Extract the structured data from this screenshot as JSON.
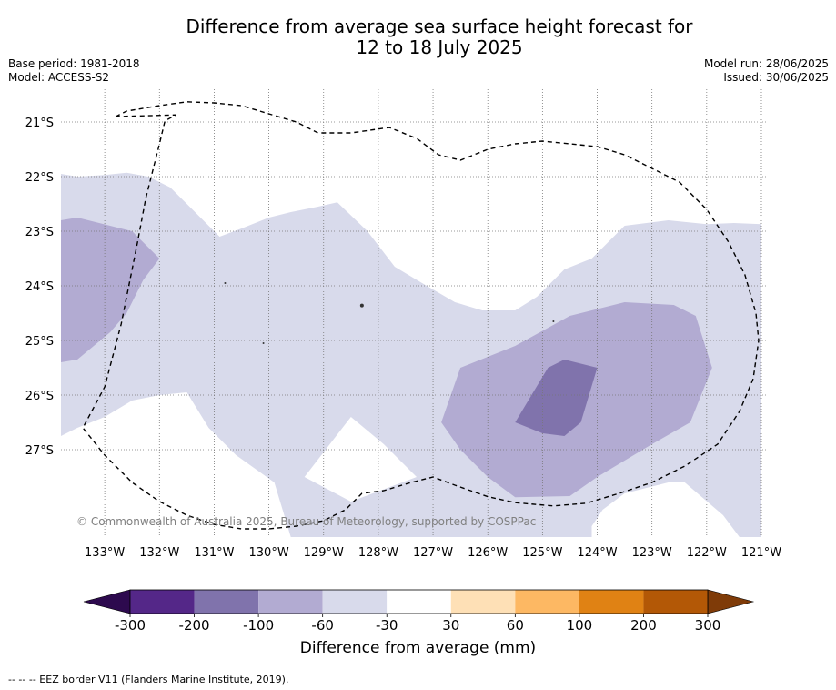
{
  "title_line1": "Difference from average sea surface height forecast for",
  "title_line2": "12 to 18 July 2025",
  "base_period": "Base period: 1981-2018",
  "model": "Model: ACCESS-S2",
  "model_run": "Model run: 28/06/2025",
  "issued": "Issued: 30/06/2025",
  "copyright": "© Commonwealth of Australia 2025, Bureau of Meteorology, supported by COSPPac",
  "eez_note": "-- -- -- EEZ border V11 (Flanders Marine Institute, 2019).",
  "colorbar_title": "Difference from average (mm)",
  "map_extent": {
    "lon_min": -133.8,
    "lon_max": -120.9,
    "lat_min": -28.6,
    "lat_max": -20.4
  },
  "lon_ticks": [
    {
      "value": -133,
      "label": "133°W"
    },
    {
      "value": -132,
      "label": "132°W"
    },
    {
      "value": -131,
      "label": "131°W"
    },
    {
      "value": -130,
      "label": "130°W"
    },
    {
      "value": -129,
      "label": "129°W"
    },
    {
      "value": -128,
      "label": "128°W"
    },
    {
      "value": -127,
      "label": "127°W"
    },
    {
      "value": -126,
      "label": "126°W"
    },
    {
      "value": -125,
      "label": "125°W"
    },
    {
      "value": -124,
      "label": "124°W"
    },
    {
      "value": -123,
      "label": "123°W"
    },
    {
      "value": -122,
      "label": "122°W"
    },
    {
      "value": -121,
      "label": "121°W"
    }
  ],
  "lat_ticks": [
    {
      "value": -21,
      "label": "21°S"
    },
    {
      "value": -22,
      "label": "22°S"
    },
    {
      "value": -23,
      "label": "23°S"
    },
    {
      "value": -24,
      "label": "24°S"
    },
    {
      "value": -25,
      "label": "25°S"
    },
    {
      "value": -26,
      "label": "26°S"
    },
    {
      "value": -27,
      "label": "27°S"
    }
  ],
  "colorbar": {
    "under_color": "#2d0a4e",
    "over_color": "#7f3b08",
    "colors": [
      "#542788",
      "#8073ac",
      "#b2abd2",
      "#d8daeb",
      "#ffffff",
      "#fee0b6",
      "#fdb863",
      "#e08214",
      "#b35806"
    ],
    "labels": [
      "-300",
      "-200",
      "-100",
      "-60",
      "-30",
      "30",
      "60",
      "100",
      "200",
      "300"
    ]
  },
  "contours": [
    {
      "range": "-60 to -30",
      "color": "#d8daeb",
      "polygon": [
        [
          -133.8,
          -21.95
        ],
        [
          -133.5,
          -22.0
        ],
        [
          -133.0,
          -21.97
        ],
        [
          -132.6,
          -21.93
        ],
        [
          -132.2,
          -22.0
        ],
        [
          -131.8,
          -22.2
        ],
        [
          -131.5,
          -22.5
        ],
        [
          -131.2,
          -22.8
        ],
        [
          -130.9,
          -23.1
        ],
        [
          -130.5,
          -22.95
        ],
        [
          -130.0,
          -22.75
        ],
        [
          -129.6,
          -22.65
        ],
        [
          -129.1,
          -22.55
        ],
        [
          -128.75,
          -22.47
        ],
        [
          -128.2,
          -23.0
        ],
        [
          -127.7,
          -23.65
        ],
        [
          -127.2,
          -23.95
        ],
        [
          -126.6,
          -24.3
        ],
        [
          -126.1,
          -24.45
        ],
        [
          -125.5,
          -24.45
        ],
        [
          -125.1,
          -24.2
        ],
        [
          -124.6,
          -23.7
        ],
        [
          -124.1,
          -23.5
        ],
        [
          -123.5,
          -22.9
        ],
        [
          -122.7,
          -22.8
        ],
        [
          -122.0,
          -22.87
        ],
        [
          -121.5,
          -22.85
        ],
        [
          -121.0,
          -22.87
        ],
        [
          -121.0,
          -28.6
        ],
        [
          -121.4,
          -28.6
        ],
        [
          -121.7,
          -28.2
        ],
        [
          -122.4,
          -27.6
        ],
        [
          -122.7,
          -27.6
        ],
        [
          -123.5,
          -27.8
        ],
        [
          -123.9,
          -28.1
        ],
        [
          -124.1,
          -28.4
        ],
        [
          -124.1,
          -28.6
        ],
        [
          -129.6,
          -28.6
        ],
        [
          -129.9,
          -27.6
        ],
        [
          -130.6,
          -27.1
        ],
        [
          -131.1,
          -26.6
        ],
        [
          -131.5,
          -25.95
        ],
        [
          -132.0,
          -26.0
        ],
        [
          -132.5,
          -26.1
        ],
        [
          -133.0,
          -26.4
        ],
        [
          -133.5,
          -26.6
        ],
        [
          -133.8,
          -26.75
        ]
      ]
    },
    {
      "range": "-30 to 30",
      "color": "#ffffff",
      "polygon": [
        [
          -128.5,
          -26.4
        ],
        [
          -127.9,
          -26.9
        ],
        [
          -127.3,
          -27.5
        ],
        [
          -128.5,
          -27.95
        ],
        [
          -129.35,
          -27.5
        ]
      ]
    },
    {
      "range": "-100 to -60",
      "color": "#b2abd2",
      "polygon": [
        [
          -133.8,
          -22.8
        ],
        [
          -133.5,
          -22.75
        ],
        [
          -132.9,
          -22.9
        ],
        [
          -132.5,
          -23.0
        ],
        [
          -132.0,
          -23.5
        ],
        [
          -132.3,
          -23.9
        ],
        [
          -132.6,
          -24.5
        ],
        [
          -132.9,
          -24.85
        ],
        [
          -133.5,
          -25.35
        ],
        [
          -133.8,
          -25.4
        ]
      ]
    },
    {
      "range": "-100 to -60",
      "color": "#b2abd2",
      "polygon": [
        [
          -126.5,
          -25.5
        ],
        [
          -125.5,
          -25.1
        ],
        [
          -124.5,
          -24.55
        ],
        [
          -123.5,
          -24.3
        ],
        [
          -122.6,
          -24.35
        ],
        [
          -122.2,
          -24.55
        ],
        [
          -121.9,
          -25.5
        ],
        [
          -122.3,
          -26.5
        ],
        [
          -123.0,
          -26.9
        ],
        [
          -124.0,
          -27.5
        ],
        [
          -124.5,
          -27.85
        ],
        [
          -125.5,
          -27.87
        ],
        [
          -126.0,
          -27.5
        ],
        [
          -126.5,
          -27.0
        ],
        [
          -126.85,
          -26.5
        ]
      ]
    },
    {
      "range": "-200 to -100",
      "color": "#8073ac",
      "polygon": [
        [
          -124.6,
          -25.35
        ],
        [
          -124.9,
          -25.5
        ],
        [
          -125.2,
          -26.0
        ],
        [
          -125.5,
          -26.5
        ],
        [
          -125.0,
          -26.7
        ],
        [
          -124.6,
          -26.75
        ],
        [
          -124.3,
          -26.5
        ],
        [
          -124.0,
          -25.5
        ]
      ]
    }
  ],
  "eez_border": [
    [
      -132.8,
      -20.9
    ],
    [
      -132.6,
      -20.8
    ],
    [
      -132.0,
      -20.7
    ],
    [
      -131.5,
      -20.63
    ],
    [
      -131.0,
      -20.65
    ],
    [
      -130.5,
      -20.7
    ],
    [
      -130.0,
      -20.85
    ],
    [
      -129.5,
      -21.0
    ],
    [
      -129.1,
      -21.2
    ],
    [
      -128.5,
      -21.2
    ],
    [
      -127.8,
      -21.1
    ],
    [
      -127.3,
      -21.3
    ],
    [
      -126.9,
      -21.6
    ],
    [
      -126.5,
      -21.7
    ],
    [
      -126.0,
      -21.5
    ],
    [
      -125.5,
      -21.4
    ],
    [
      -125.0,
      -21.35
    ],
    [
      -124.5,
      -21.4
    ],
    [
      -124.0,
      -21.45
    ],
    [
      -123.5,
      -21.6
    ],
    [
      -123.0,
      -21.85
    ],
    [
      -122.5,
      -22.1
    ],
    [
      -122.0,
      -22.6
    ],
    [
      -121.6,
      -23.2
    ],
    [
      -121.3,
      -23.8
    ],
    [
      -121.1,
      -24.5
    ],
    [
      -121.05,
      -25.0
    ],
    [
      -121.15,
      -25.7
    ],
    [
      -121.4,
      -26.3
    ],
    [
      -121.8,
      -26.9
    ],
    [
      -122.4,
      -27.3
    ],
    [
      -123.0,
      -27.6
    ],
    [
      -123.6,
      -27.8
    ],
    [
      -124.2,
      -27.98
    ],
    [
      -124.8,
      -28.03
    ],
    [
      -125.5,
      -27.97
    ],
    [
      -126.0,
      -27.86
    ],
    [
      -126.6,
      -27.65
    ],
    [
      -127.0,
      -27.5
    ],
    [
      -127.4,
      -27.6
    ],
    [
      -127.9,
      -27.75
    ],
    [
      -128.3,
      -27.8
    ],
    [
      -128.6,
      -28.1
    ],
    [
      -129.0,
      -28.3
    ],
    [
      -129.5,
      -28.4
    ],
    [
      -130.0,
      -28.45
    ],
    [
      -130.5,
      -28.45
    ],
    [
      -131.0,
      -28.37
    ],
    [
      -131.5,
      -28.2
    ],
    [
      -132.0,
      -27.95
    ],
    [
      -132.5,
      -27.6
    ],
    [
      -133.0,
      -27.1
    ],
    [
      -133.4,
      -26.6
    ],
    [
      -133.0,
      -25.85
    ],
    [
      -132.7,
      -24.7
    ],
    [
      -132.4,
      -23.2
    ],
    [
      -132.25,
      -22.4
    ],
    [
      -132.0,
      -21.4
    ],
    [
      -131.9,
      -20.98
    ],
    [
      -131.7,
      -20.87
    ],
    [
      -132.8,
      -20.9
    ]
  ],
  "small_features": [
    {
      "lon": -128.3,
      "lat": -24.36,
      "r": 2
    },
    {
      "lon": -130.8,
      "lat": -23.95,
      "r": 1
    },
    {
      "lon": -130.1,
      "lat": -25.05,
      "r": 1
    },
    {
      "lon": -124.8,
      "lat": -24.65,
      "r": 1
    }
  ]
}
